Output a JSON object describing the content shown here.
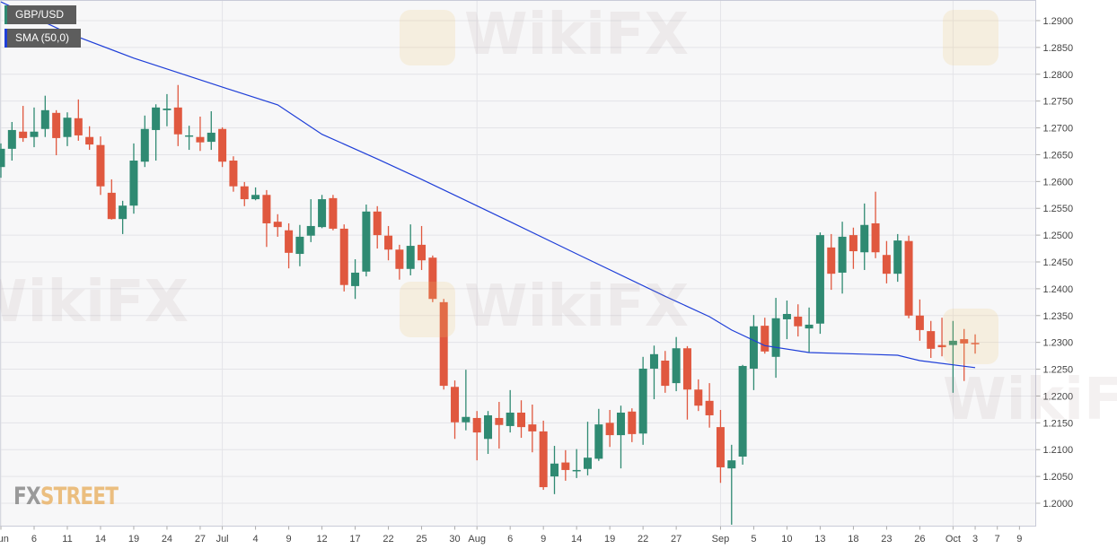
{
  "instrument": "GBP/USD",
  "indicator": "SMA (50,0)",
  "logo": "FXSTREET",
  "watermark": "WikiFX",
  "colors": {
    "up": "#2f8a72",
    "down": "#e0583f",
    "sma": "#1f3fd8",
    "legend_bg": "#5d5d5d",
    "plot_bg": "#f7f7f8",
    "grid": "#e4e4e8"
  },
  "chart_data": {
    "type": "candlestick",
    "ylim": [
      1.195,
      1.2935
    ],
    "y_ticks": [
      "1.2000",
      "1.2050",
      "1.2100",
      "1.2150",
      "1.2200",
      "1.2250",
      "1.2300",
      "1.2350",
      "1.2400",
      "1.2450",
      "1.2500",
      "1.2550",
      "1.2600",
      "1.2650",
      "1.2700",
      "1.2750",
      "1.2800",
      "1.2850",
      "1.2900"
    ],
    "x_ticks": [
      {
        "date": "2019-06-03",
        "label": "Jun",
        "month": true
      },
      {
        "date": "2019-06-06",
        "label": "6"
      },
      {
        "date": "2019-06-11",
        "label": "11"
      },
      {
        "date": "2019-06-14",
        "label": "14"
      },
      {
        "date": "2019-06-19",
        "label": "19"
      },
      {
        "date": "2019-06-24",
        "label": "24"
      },
      {
        "date": "2019-06-27",
        "label": "27"
      },
      {
        "date": "2019-07-01",
        "label": "Jul",
        "month": true
      },
      {
        "date": "2019-07-04",
        "label": "4"
      },
      {
        "date": "2019-07-09",
        "label": "9"
      },
      {
        "date": "2019-07-12",
        "label": "12"
      },
      {
        "date": "2019-07-17",
        "label": "17"
      },
      {
        "date": "2019-07-22",
        "label": "22"
      },
      {
        "date": "2019-07-25",
        "label": "25"
      },
      {
        "date": "2019-07-30",
        "label": "30"
      },
      {
        "date": "2019-08-01",
        "label": "Aug",
        "month": true
      },
      {
        "date": "2019-08-06",
        "label": "6"
      },
      {
        "date": "2019-08-09",
        "label": "9"
      },
      {
        "date": "2019-08-14",
        "label": "14"
      },
      {
        "date": "2019-08-19",
        "label": "19"
      },
      {
        "date": "2019-08-22",
        "label": "22"
      },
      {
        "date": "2019-08-27",
        "label": "27"
      },
      {
        "date": "2019-09-02",
        "label": "Sep",
        "month": true
      },
      {
        "date": "2019-09-05",
        "label": "5"
      },
      {
        "date": "2019-09-10",
        "label": "10"
      },
      {
        "date": "2019-09-13",
        "label": "13"
      },
      {
        "date": "2019-09-18",
        "label": "18"
      },
      {
        "date": "2019-09-23",
        "label": "23"
      },
      {
        "date": "2019-09-26",
        "label": "26"
      },
      {
        "date": "2019-10-01",
        "label": "Oct",
        "month": true
      },
      {
        "date": "2019-10-03",
        "label": "3"
      },
      {
        "date": "2019-10-07",
        "label": "7"
      },
      {
        "date": "2019-10-09",
        "label": "9"
      }
    ],
    "columns": [
      "date",
      "open",
      "high",
      "low",
      "close"
    ],
    "candles": [
      [
        "2019-06-03",
        1.2627,
        1.2671,
        1.2607,
        1.2661
      ],
      [
        "2019-06-04",
        1.2661,
        1.2711,
        1.2639,
        1.2696
      ],
      [
        "2019-06-05",
        1.2693,
        1.2741,
        1.2674,
        1.2681
      ],
      [
        "2019-06-06",
        1.2683,
        1.2738,
        1.2664,
        1.2693
      ],
      [
        "2019-06-07",
        1.2698,
        1.276,
        1.2683,
        1.2733
      ],
      [
        "2019-06-10",
        1.2728,
        1.2733,
        1.2649,
        1.2681
      ],
      [
        "2019-06-11",
        1.2683,
        1.2729,
        1.2666,
        1.2719
      ],
      [
        "2019-06-12",
        1.2718,
        1.2753,
        1.2676,
        1.2686
      ],
      [
        "2019-06-13",
        1.2683,
        1.2703,
        1.2659,
        1.2669
      ],
      [
        "2019-06-14",
        1.2668,
        1.2684,
        1.2575,
        1.2591
      ],
      [
        "2019-06-17",
        1.2579,
        1.2604,
        1.2529,
        1.253
      ],
      [
        "2019-06-18",
        1.253,
        1.2564,
        1.2502,
        1.2555
      ],
      [
        "2019-06-19",
        1.2555,
        1.2671,
        1.254,
        1.2639
      ],
      [
        "2019-06-20",
        1.2637,
        1.2723,
        1.2627,
        1.2698
      ],
      [
        "2019-06-21",
        1.2696,
        1.2744,
        1.2639,
        1.2738
      ],
      [
        "2019-06-24",
        1.2733,
        1.2763,
        1.2703,
        1.2736
      ],
      [
        "2019-06-25",
        1.2738,
        1.278,
        1.2666,
        1.2688
      ],
      [
        "2019-06-26",
        1.2684,
        1.2704,
        1.2659,
        1.2686
      ],
      [
        "2019-06-27",
        1.2683,
        1.2721,
        1.2657,
        1.2673
      ],
      [
        "2019-06-28",
        1.2674,
        1.2731,
        1.2659,
        1.2691
      ],
      [
        "2019-07-01",
        1.2698,
        1.2701,
        1.2627,
        1.2637
      ],
      [
        "2019-07-02",
        1.2639,
        1.2647,
        1.2581,
        1.2591
      ],
      [
        "2019-07-03",
        1.2591,
        1.2599,
        1.2554,
        1.2567
      ],
      [
        "2019-07-04",
        1.2567,
        1.2589,
        1.2565,
        1.2575
      ],
      [
        "2019-07-05",
        1.2575,
        1.2584,
        1.2478,
        1.2522
      ],
      [
        "2019-07-08",
        1.2525,
        1.2539,
        1.2497,
        1.2515
      ],
      [
        "2019-07-09",
        1.2509,
        1.2522,
        1.2438,
        1.2467
      ],
      [
        "2019-07-10",
        1.2465,
        1.2519,
        1.2442,
        1.2497
      ],
      [
        "2019-07-11",
        1.2499,
        1.2567,
        1.2487,
        1.2517
      ],
      [
        "2019-07-12",
        1.2515,
        1.2575,
        1.2513,
        1.2567
      ],
      [
        "2019-07-15",
        1.2569,
        1.2575,
        1.2509,
        1.2512
      ],
      [
        "2019-07-16",
        1.2512,
        1.252,
        1.2395,
        1.2407
      ],
      [
        "2019-07-17",
        1.2405,
        1.2455,
        1.2381,
        1.243
      ],
      [
        "2019-07-18",
        1.2432,
        1.2557,
        1.2423,
        1.2544
      ],
      [
        "2019-07-19",
        1.2544,
        1.2554,
        1.2475,
        1.25
      ],
      [
        "2019-07-22",
        1.2499,
        1.2517,
        1.2453,
        1.2473
      ],
      [
        "2019-07-23",
        1.2473,
        1.2482,
        1.2417,
        1.2437
      ],
      [
        "2019-07-24",
        1.2437,
        1.252,
        1.2425,
        1.248
      ],
      [
        "2019-07-25",
        1.2482,
        1.2517,
        1.2435,
        1.2453
      ],
      [
        "2019-07-26",
        1.2458,
        1.2462,
        1.2375,
        1.2381
      ],
      [
        "2019-07-29",
        1.2375,
        1.2381,
        1.2212,
        1.2219
      ],
      [
        "2019-07-30",
        1.2217,
        1.2229,
        1.212,
        1.2151
      ],
      [
        "2019-07-31",
        1.2151,
        1.2249,
        1.2136,
        1.2161
      ],
      [
        "2019-08-01",
        1.2159,
        1.2172,
        1.208,
        1.2132
      ],
      [
        "2019-08-02",
        1.212,
        1.2172,
        1.2092,
        1.2164
      ],
      [
        "2019-08-05",
        1.2159,
        1.2189,
        1.2102,
        1.2146
      ],
      [
        "2019-08-06",
        1.2144,
        1.2211,
        1.2132,
        1.2169
      ],
      [
        "2019-08-07",
        1.2169,
        1.2192,
        1.2122,
        1.2142
      ],
      [
        "2019-08-08",
        1.2147,
        1.2184,
        1.2095,
        1.2134
      ],
      [
        "2019-08-09",
        1.2134,
        1.2154,
        1.2025,
        1.203
      ],
      [
        "2019-08-12",
        1.205,
        1.2107,
        1.2017,
        1.2074
      ],
      [
        "2019-08-13",
        1.2076,
        1.2099,
        1.2042,
        1.2062
      ],
      [
        "2019-08-14",
        1.206,
        1.2101,
        1.2047,
        1.2062
      ],
      [
        "2019-08-15",
        1.2064,
        1.2152,
        1.2052,
        1.2085
      ],
      [
        "2019-08-16",
        1.2083,
        1.2176,
        1.2079,
        1.2147
      ],
      [
        "2019-08-19",
        1.215,
        1.2174,
        1.2105,
        1.2127
      ],
      [
        "2019-08-20",
        1.2127,
        1.2182,
        1.2065,
        1.2169
      ],
      [
        "2019-08-21",
        1.2171,
        1.2177,
        1.2114,
        1.2129
      ],
      [
        "2019-08-22",
        1.213,
        1.2273,
        1.2109,
        1.2251
      ],
      [
        "2019-08-23",
        1.2251,
        1.2294,
        1.2194,
        1.2278
      ],
      [
        "2019-08-26",
        1.2266,
        1.2284,
        1.2206,
        1.2219
      ],
      [
        "2019-08-27",
        1.2224,
        1.231,
        1.2209,
        1.2289
      ],
      [
        "2019-08-28",
        1.2289,
        1.2293,
        1.2156,
        1.2212
      ],
      [
        "2019-08-29",
        1.2212,
        1.2231,
        1.2172,
        1.2182
      ],
      [
        "2019-08-30",
        1.2191,
        1.2224,
        1.2141,
        1.2164
      ],
      [
        "2019-09-02",
        1.2142,
        1.2174,
        1.2038,
        1.2067
      ],
      [
        "2019-09-03",
        1.2065,
        1.2109,
        1.196,
        1.208
      ],
      [
        "2019-09-04",
        1.2087,
        1.2258,
        1.2072,
        1.2256
      ],
      [
        "2019-09-05",
        1.2251,
        1.2351,
        1.2211,
        1.233
      ],
      [
        "2019-09-06",
        1.2331,
        1.2346,
        1.2279,
        1.2283
      ],
      [
        "2019-09-09",
        1.2273,
        1.2383,
        1.2234,
        1.2345
      ],
      [
        "2019-09-10",
        1.2343,
        1.2378,
        1.2306,
        1.2353
      ],
      [
        "2019-09-11",
        1.2348,
        1.2371,
        1.2311,
        1.233
      ],
      [
        "2019-09-12",
        1.2326,
        1.2365,
        1.2281,
        1.2333
      ],
      [
        "2019-09-13",
        1.2335,
        1.2505,
        1.2316,
        1.25
      ],
      [
        "2019-09-16",
        1.2477,
        1.2502,
        1.2398,
        1.2428
      ],
      [
        "2019-09-17",
        1.243,
        1.2525,
        1.2391,
        1.2497
      ],
      [
        "2019-09-18",
        1.25,
        1.2514,
        1.2437,
        1.247
      ],
      [
        "2019-09-19",
        1.2468,
        1.2559,
        1.2435,
        1.2519
      ],
      [
        "2019-09-20",
        1.2522,
        1.2581,
        1.2457,
        1.2468
      ],
      [
        "2019-09-23",
        1.2463,
        1.2489,
        1.241,
        1.2428
      ],
      [
        "2019-09-24",
        1.2428,
        1.2502,
        1.2413,
        1.249
      ],
      [
        "2019-09-25",
        1.2489,
        1.2499,
        1.2345,
        1.235
      ],
      [
        "2019-09-26",
        1.235,
        1.238,
        1.2303,
        1.2323
      ],
      [
        "2019-09-27",
        1.2321,
        1.234,
        1.2271,
        1.2288
      ],
      [
        "2019-09-30",
        1.2295,
        1.2346,
        1.2274,
        1.2291
      ],
      [
        "2019-10-01",
        1.2295,
        1.234,
        1.2206,
        1.2303
      ],
      [
        "2019-10-02",
        1.2306,
        1.2325,
        1.2228,
        1.2298
      ],
      [
        "2019-10-03",
        1.2299,
        1.2315,
        1.2279,
        1.2298
      ]
    ],
    "sma": {
      "name": "SMA (50,0)",
      "points": [
        [
          "2019-06-03",
          1.2935
        ],
        [
          "2019-06-11",
          1.2877
        ],
        [
          "2019-06-19",
          1.283
        ],
        [
          "2019-07-01",
          1.2776
        ],
        [
          "2019-07-08",
          1.2743
        ],
        [
          "2019-07-12",
          1.2688
        ],
        [
          "2019-07-19",
          1.2642
        ],
        [
          "2019-07-25",
          1.2604
        ],
        [
          "2019-08-06",
          1.2525
        ],
        [
          "2019-08-14",
          1.2465
        ],
        [
          "2019-08-26",
          1.2386
        ],
        [
          "2019-08-30",
          1.2348
        ],
        [
          "2019-09-03",
          1.2323
        ],
        [
          "2019-09-06",
          1.2294
        ],
        [
          "2019-09-12",
          1.2281
        ],
        [
          "2019-09-19",
          1.2278
        ],
        [
          "2019-09-24",
          1.2276
        ],
        [
          "2019-09-26",
          1.2266
        ],
        [
          "2019-10-03",
          1.2253
        ]
      ]
    }
  }
}
